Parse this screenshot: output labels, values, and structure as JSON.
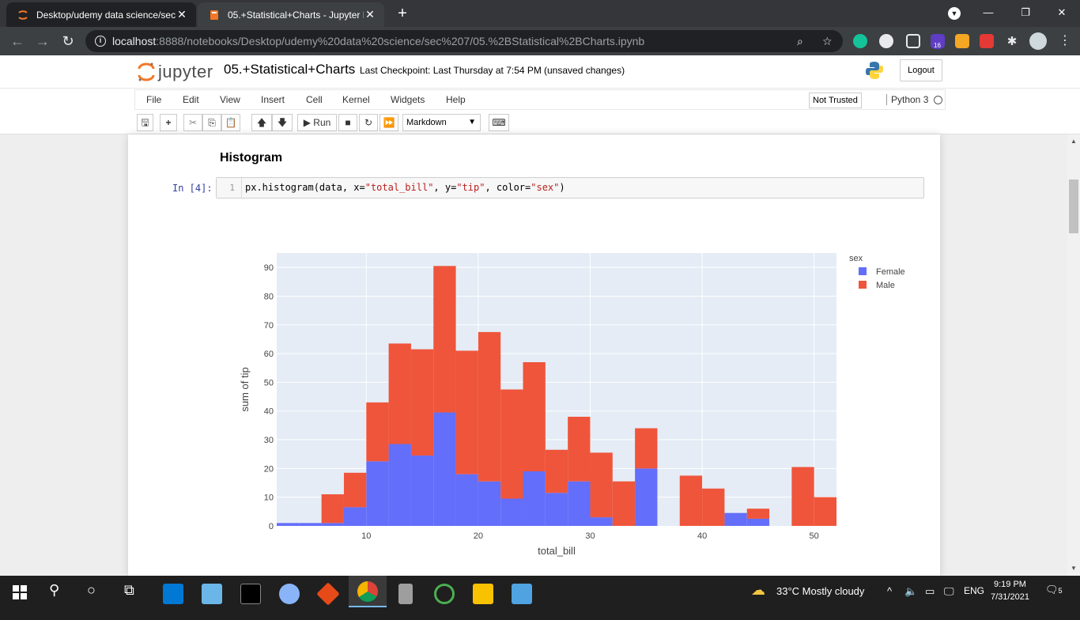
{
  "browser": {
    "tabs": [
      {
        "title": "Desktop/udemy data science/sec",
        "active": false
      },
      {
        "title": "05.+Statistical+Charts - Jupyter N",
        "active": true
      }
    ],
    "url_host": "localhost",
    "url_rest": ":8888/notebooks/Desktop/udemy%20data%20science/sec%207/05.%2BStatistical%2BCharts.ipynb",
    "ext_badge": "16"
  },
  "jupyter": {
    "logo_text": "jupyter",
    "notebook_name": "05.+Statistical+Charts",
    "checkpoint": "Last Checkpoint: Last Thursday at 7:54 PM",
    "unsaved": "(unsaved changes)",
    "logout": "Logout",
    "menu": [
      "File",
      "Edit",
      "View",
      "Insert",
      "Cell",
      "Kernel",
      "Widgets",
      "Help"
    ],
    "trust": "Not Trusted",
    "kernel": "Python 3",
    "run_label": "Run",
    "cell_type": "Markdown"
  },
  "notebook": {
    "heading": "Histogram",
    "prompt": "In [4]:",
    "line_number": "1",
    "code_parts": [
      "px.histogram(data, x=",
      "\"total_bill\"",
      ", y=",
      "\"tip\"",
      ", color=",
      "\"sex\"",
      ")"
    ]
  },
  "chart_data": {
    "type": "bar",
    "stacked": true,
    "xlabel": "total_bill",
    "ylabel": "sum of tip",
    "legend_title": "sex",
    "legend_position": "top-right",
    "xlim": [
      2,
      52
    ],
    "ylim": [
      0,
      95
    ],
    "xticks": [
      10,
      20,
      30,
      40,
      50
    ],
    "yticks": [
      0,
      10,
      20,
      30,
      40,
      50,
      60,
      70,
      80,
      90
    ],
    "bin_edges": [
      2,
      4,
      6,
      8,
      10,
      12,
      14,
      16,
      18,
      20,
      22,
      24,
      26,
      28,
      30,
      32,
      34,
      36,
      38,
      40,
      42,
      44,
      46,
      48,
      50,
      52
    ],
    "series": [
      {
        "name": "Female",
        "color": "#636efa",
        "values": [
          1,
          1,
          1,
          6.5,
          22.5,
          28.5,
          24.5,
          39.5,
          18,
          15.5,
          9.5,
          19,
          11.5,
          15.5,
          3,
          0,
          20,
          0,
          0,
          0,
          4.5,
          2.5,
          0,
          0,
          0
        ]
      },
      {
        "name": "Male",
        "color": "#ef553b",
        "values": [
          0,
          0,
          10,
          12,
          20.5,
          35,
          37,
          51,
          43,
          52,
          38,
          38,
          15,
          22.5,
          22.5,
          15.5,
          14,
          0,
          17.5,
          13,
          0,
          3.5,
          0,
          20.5,
          10
        ]
      }
    ],
    "plot_bg": "#e5ecf6",
    "grid": true
  },
  "taskbar": {
    "weather": "33°C  Mostly cloudy",
    "lang": "ENG",
    "time": "9:19 PM",
    "date": "7/31/2021",
    "notif": "5"
  }
}
